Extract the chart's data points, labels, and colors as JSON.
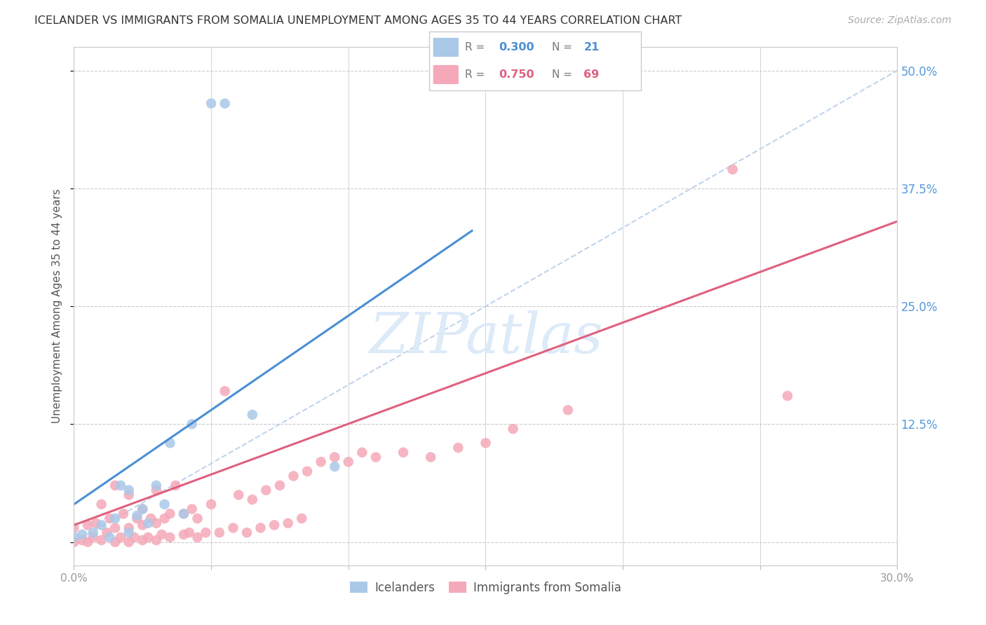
{
  "title": "ICELANDER VS IMMIGRANTS FROM SOMALIA UNEMPLOYMENT AMONG AGES 35 TO 44 YEARS CORRELATION CHART",
  "source": "Source: ZipAtlas.com",
  "ylabel": "Unemployment Among Ages 35 to 44 years",
  "xlim": [
    0.0,
    0.3
  ],
  "ylim": [
    -0.025,
    0.525
  ],
  "x_tick_positions": [
    0.0,
    0.05,
    0.1,
    0.15,
    0.2,
    0.25,
    0.3
  ],
  "x_tick_labels": [
    "0.0%",
    "",
    "",
    "",
    "",
    "",
    "30.0%"
  ],
  "y_tick_positions": [
    0.0,
    0.125,
    0.25,
    0.375,
    0.5
  ],
  "y_tick_labels_right": [
    "",
    "12.5%",
    "25.0%",
    "37.5%",
    "50.0%"
  ],
  "icelanders_R": 0.3,
  "icelanders_N": 21,
  "somalia_R": 0.75,
  "somalia_N": 69,
  "icelanders_scatter_color": "#aac8e8",
  "somalia_scatter_color": "#f5a8b8",
  "icelanders_line_color": "#4a8fd4",
  "somalia_line_color": "#e06080",
  "dashed_line_color": "#c0d4ec",
  "watermark_color": "#ddeaf8",
  "background_color": "#ffffff",
  "grid_color": "#cccccc",
  "ice_x": [
    0.0,
    0.003,
    0.007,
    0.01,
    0.013,
    0.015,
    0.017,
    0.02,
    0.02,
    0.023,
    0.025,
    0.027,
    0.03,
    0.033,
    0.035,
    0.04,
    0.043,
    0.05,
    0.055,
    0.065,
    0.095
  ],
  "ice_y": [
    0.005,
    0.008,
    0.01,
    0.018,
    0.005,
    0.025,
    0.06,
    0.01,
    0.055,
    0.028,
    0.035,
    0.02,
    0.06,
    0.04,
    0.105,
    0.03,
    0.125,
    0.465,
    0.465,
    0.135,
    0.08
  ],
  "som_x": [
    0.0,
    0.0,
    0.003,
    0.005,
    0.005,
    0.007,
    0.008,
    0.01,
    0.01,
    0.012,
    0.013,
    0.015,
    0.015,
    0.015,
    0.017,
    0.018,
    0.02,
    0.02,
    0.02,
    0.022,
    0.023,
    0.025,
    0.025,
    0.025,
    0.027,
    0.028,
    0.03,
    0.03,
    0.03,
    0.032,
    0.033,
    0.035,
    0.035,
    0.037,
    0.04,
    0.04,
    0.042,
    0.043,
    0.045,
    0.045,
    0.048,
    0.05,
    0.053,
    0.055,
    0.058,
    0.06,
    0.063,
    0.065,
    0.068,
    0.07,
    0.073,
    0.075,
    0.078,
    0.08,
    0.083,
    0.085,
    0.09,
    0.095,
    0.1,
    0.105,
    0.11,
    0.12,
    0.13,
    0.14,
    0.15,
    0.16,
    0.18,
    0.24,
    0.26
  ],
  "som_y": [
    0.0,
    0.015,
    0.002,
    0.0,
    0.018,
    0.005,
    0.02,
    0.002,
    0.04,
    0.01,
    0.025,
    0.0,
    0.015,
    0.06,
    0.005,
    0.03,
    0.0,
    0.015,
    0.05,
    0.005,
    0.025,
    0.002,
    0.018,
    0.035,
    0.005,
    0.025,
    0.002,
    0.02,
    0.055,
    0.008,
    0.025,
    0.005,
    0.03,
    0.06,
    0.008,
    0.03,
    0.01,
    0.035,
    0.005,
    0.025,
    0.01,
    0.04,
    0.01,
    0.16,
    0.015,
    0.05,
    0.01,
    0.045,
    0.015,
    0.055,
    0.018,
    0.06,
    0.02,
    0.07,
    0.025,
    0.075,
    0.085,
    0.09,
    0.085,
    0.095,
    0.09,
    0.095,
    0.09,
    0.1,
    0.105,
    0.12,
    0.14,
    0.395,
    0.155
  ],
  "ice_line_x": [
    0.0,
    0.145
  ],
  "ice_line_y": [
    0.04,
    0.33
  ],
  "som_line_x": [
    0.0,
    0.3
  ],
  "som_line_y": [
    0.018,
    0.34
  ]
}
